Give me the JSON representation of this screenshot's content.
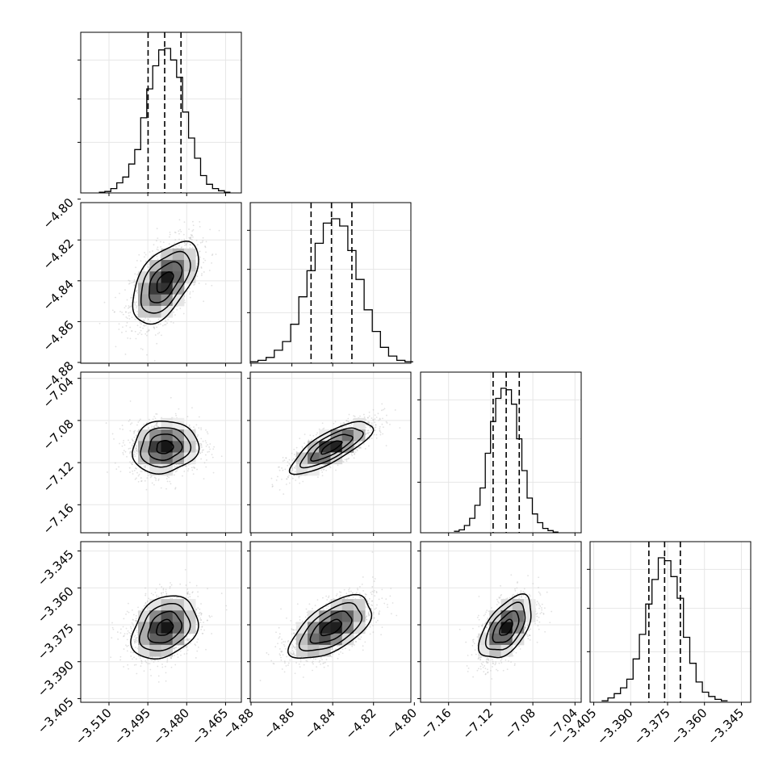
{
  "chart_data": {
    "type": "scatter",
    "title": "",
    "variables": [
      {
        "range": [
          -3.5209,
          -3.4589
        ],
        "ticks": [
          -3.51,
          -3.495,
          -3.48,
          -3.465
        ],
        "tick_labels": [
          "−3.510",
          "−3.495",
          "−3.480",
          "−3.465"
        ],
        "quantiles": [
          -3.4949,
          -3.4885,
          -3.4822
        ]
      },
      {
        "range": [
          -4.8804,
          -4.8017
        ],
        "ticks": [
          -4.88,
          -4.86,
          -4.84,
          -4.82,
          -4.8
        ],
        "tick_labels": [
          "−4.88",
          "−4.86",
          "−4.84",
          "−4.82",
          "−4.80"
        ],
        "quantiles": [
          -4.8506,
          -4.8406,
          -4.8306
        ]
      },
      {
        "range": [
          -7.1866,
          -7.0341
        ],
        "ticks": [
          -7.16,
          -7.12,
          -7.08,
          -7.04
        ],
        "tick_labels": [
          "−7.16",
          "−7.12",
          "−7.08",
          "−7.04"
        ],
        "quantiles": [
          -7.1177,
          -7.1053,
          -7.0929
        ]
      },
      {
        "range": [
          -3.4065,
          -3.3412
        ],
        "ticks": [
          -3.405,
          -3.39,
          -3.375,
          -3.36,
          -3.345
        ],
        "tick_labels": [
          "−3.405",
          "−3.390",
          "−3.375",
          "−3.360",
          "−3.345"
        ],
        "quantiles": [
          -3.3826,
          -3.3762,
          -3.3698
        ]
      }
    ],
    "y_tick_labels": {
      "row1": [
        "−4.80",
        "−4.82",
        "−4.84",
        "−4.86",
        "−4.88"
      ],
      "row2": [
        "−7.04",
        "−7.08",
        "−7.12",
        "−7.16"
      ],
      "row3": [
        "−3.345",
        "−3.360",
        "−3.375",
        "−3.390",
        "−3.405"
      ]
    },
    "histograms": [
      [
        0.005,
        0.01,
        0.03,
        0.07,
        0.11,
        0.2,
        0.3,
        0.52,
        0.72,
        0.88,
        0.99,
        1.0,
        0.92,
        0.8,
        0.56,
        0.38,
        0.24,
        0.12,
        0.06,
        0.03,
        0.015,
        0.005
      ],
      [
        0.01,
        0.02,
        0.04,
        0.09,
        0.15,
        0.27,
        0.46,
        0.64,
        0.83,
        0.97,
        1.0,
        0.95,
        0.78,
        0.58,
        0.37,
        0.22,
        0.11,
        0.05,
        0.02,
        0.01
      ],
      [
        0.01,
        0.02,
        0.05,
        0.1,
        0.19,
        0.31,
        0.55,
        0.77,
        0.93,
        1.0,
        0.99,
        0.89,
        0.65,
        0.43,
        0.24,
        0.13,
        0.07,
        0.03,
        0.015,
        0.005
      ],
      [
        0.01,
        0.03,
        0.06,
        0.1,
        0.16,
        0.3,
        0.47,
        0.68,
        0.85,
        1.0,
        0.98,
        0.87,
        0.72,
        0.45,
        0.27,
        0.14,
        0.07,
        0.04,
        0.02,
        0.01
      ]
    ],
    "correlations": {
      "1-0": 0.55,
      "2-0": 0.1,
      "2-1": 0.78,
      "3-0": 0.28,
      "3-1": 0.6,
      "3-2": 0.55
    },
    "contour_levels_sigma": [
      0.5,
      1.0,
      1.5,
      2.0
    ],
    "quantile_style": "dashed",
    "grid": true,
    "legend": "none"
  }
}
